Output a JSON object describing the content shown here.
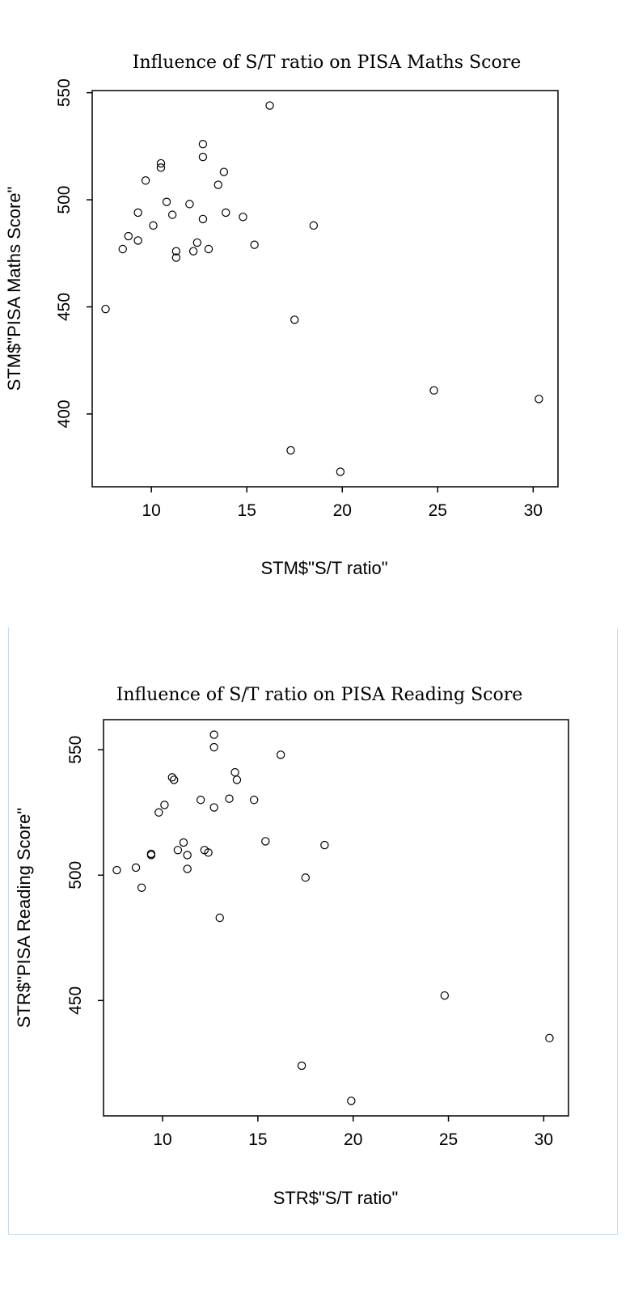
{
  "chart_data": [
    {
      "type": "scatter",
      "title": "Influence of S/T ratio on PISA Maths Score",
      "xlabel": "STM$\"S/T ratio\"",
      "ylabel": "STM$\"PISA Maths Score\"",
      "xlim": [
        6.9,
        31.3
      ],
      "ylim": [
        366,
        551
      ],
      "xticks": [
        10,
        15,
        20,
        25,
        30
      ],
      "yticks": [
        400,
        450,
        500,
        550
      ],
      "xtick_labels": [
        "10",
        "15",
        "20",
        "25",
        "30"
      ],
      "ytick_labels": [
        "400",
        "450",
        "500",
        "550"
      ],
      "grid": false,
      "points": [
        {
          "x": 7.6,
          "y": 449
        },
        {
          "x": 8.5,
          "y": 477
        },
        {
          "x": 8.8,
          "y": 483
        },
        {
          "x": 9.3,
          "y": 481
        },
        {
          "x": 9.3,
          "y": 494
        },
        {
          "x": 9.7,
          "y": 509
        },
        {
          "x": 10.1,
          "y": 488
        },
        {
          "x": 10.5,
          "y": 515
        },
        {
          "x": 10.5,
          "y": 517
        },
        {
          "x": 10.8,
          "y": 499
        },
        {
          "x": 11.1,
          "y": 493
        },
        {
          "x": 11.3,
          "y": 476
        },
        {
          "x": 11.3,
          "y": 473
        },
        {
          "x": 12.0,
          "y": 498
        },
        {
          "x": 12.2,
          "y": 476
        },
        {
          "x": 12.4,
          "y": 480
        },
        {
          "x": 12.7,
          "y": 526
        },
        {
          "x": 12.7,
          "y": 520
        },
        {
          "x": 12.7,
          "y": 491
        },
        {
          "x": 13.0,
          "y": 477
        },
        {
          "x": 13.5,
          "y": 507
        },
        {
          "x": 13.8,
          "y": 513
        },
        {
          "x": 13.9,
          "y": 494
        },
        {
          "x": 14.8,
          "y": 492
        },
        {
          "x": 15.4,
          "y": 479
        },
        {
          "x": 16.2,
          "y": 544
        },
        {
          "x": 17.3,
          "y": 383
        },
        {
          "x": 17.5,
          "y": 444
        },
        {
          "x": 18.5,
          "y": 488
        },
        {
          "x": 19.9,
          "y": 373
        },
        {
          "x": 24.8,
          "y": 411
        },
        {
          "x": 30.3,
          "y": 407
        }
      ]
    },
    {
      "type": "scatter",
      "title": "Influence of S/T ratio on PISA Reading Score",
      "xlabel": "STR$\"S/T ratio\"",
      "ylabel": "STR$\"PISA Reading Score\"",
      "xlim": [
        6.9,
        31.3
      ],
      "ylim": [
        404,
        562
      ],
      "xticks": [
        10,
        15,
        20,
        25,
        30
      ],
      "yticks": [
        450,
        500,
        550
      ],
      "xtick_labels": [
        "10",
        "15",
        "20",
        "25",
        "30"
      ],
      "ytick_labels": [
        "450",
        "500",
        "550"
      ],
      "grid": false,
      "points": [
        {
          "x": 7.6,
          "y": 502
        },
        {
          "x": 8.6,
          "y": 503
        },
        {
          "x": 8.9,
          "y": 495
        },
        {
          "x": 9.4,
          "y": 508
        },
        {
          "x": 9.4,
          "y": 508.5
        },
        {
          "x": 9.8,
          "y": 525
        },
        {
          "x": 10.1,
          "y": 528
        },
        {
          "x": 10.5,
          "y": 539
        },
        {
          "x": 10.6,
          "y": 538
        },
        {
          "x": 10.8,
          "y": 510
        },
        {
          "x": 11.1,
          "y": 513
        },
        {
          "x": 11.3,
          "y": 508
        },
        {
          "x": 11.3,
          "y": 502.5
        },
        {
          "x": 12.0,
          "y": 530
        },
        {
          "x": 12.2,
          "y": 510
        },
        {
          "x": 12.4,
          "y": 509
        },
        {
          "x": 12.7,
          "y": 556
        },
        {
          "x": 12.7,
          "y": 551
        },
        {
          "x": 12.7,
          "y": 527
        },
        {
          "x": 13.0,
          "y": 483
        },
        {
          "x": 13.5,
          "y": 530.5
        },
        {
          "x": 13.8,
          "y": 541
        },
        {
          "x": 13.9,
          "y": 538
        },
        {
          "x": 14.8,
          "y": 530
        },
        {
          "x": 15.4,
          "y": 513.5
        },
        {
          "x": 16.2,
          "y": 548
        },
        {
          "x": 17.3,
          "y": 424
        },
        {
          "x": 17.5,
          "y": 499
        },
        {
          "x": 18.5,
          "y": 512
        },
        {
          "x": 19.9,
          "y": 410
        },
        {
          "x": 24.8,
          "y": 452
        },
        {
          "x": 30.3,
          "y": 435
        }
      ]
    }
  ]
}
